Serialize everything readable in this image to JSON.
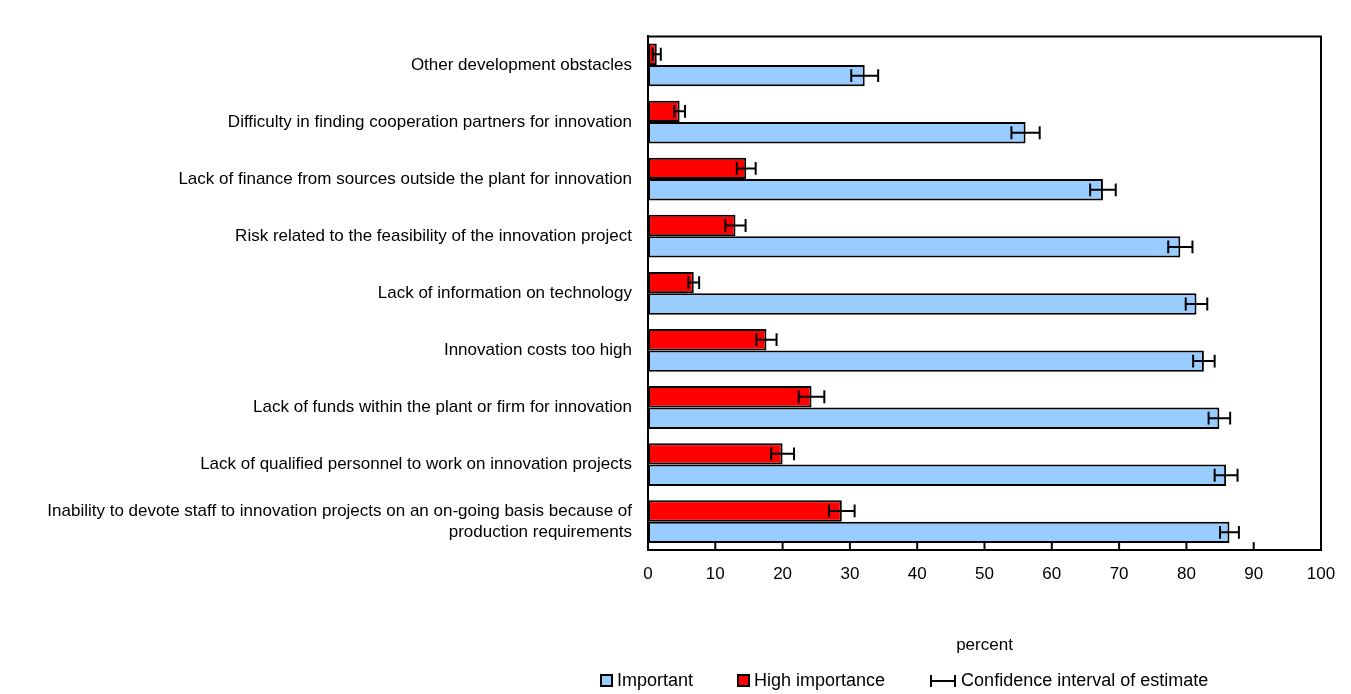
{
  "chart_data": {
    "type": "bar",
    "orientation": "horizontal",
    "categories": [
      "Other development obstacles",
      "Difficulty in finding cooperation partners for innovation",
      "Lack of finance from sources outside the plant for innovation",
      "Risk related to the feasibility of the innovation project",
      "Lack of information on technology",
      "Innovation costs too high",
      "Lack of funds within the plant or firm for innovation",
      "Lack of qualified personnel to work on innovation projects",
      "Inability to devote staff to innovation projects on an on-going basis because of production requirements"
    ],
    "series": [
      {
        "name": "Important",
        "color": "#99ccff",
        "values": [
          32.2,
          56.1,
          67.6,
          79.1,
          81.5,
          82.6,
          84.9,
          85.9,
          86.4
        ],
        "errors": [
          2.0,
          2.1,
          1.9,
          1.8,
          1.6,
          1.6,
          1.6,
          1.7,
          1.4
        ]
      },
      {
        "name": "High importance",
        "color": "#ff0000",
        "values": [
          1.3,
          4.7,
          14.6,
          13.0,
          6.8,
          17.6,
          24.3,
          20.0,
          28.8
        ],
        "errors": [
          0.6,
          0.8,
          1.4,
          1.5,
          0.8,
          1.5,
          1.9,
          1.7,
          1.9
        ]
      }
    ],
    "xlim": [
      0,
      100
    ],
    "xticks": [
      0,
      10,
      20,
      30,
      40,
      50,
      60,
      70,
      80,
      90,
      100
    ],
    "xlabel": "percent",
    "legend": "bottom",
    "grid": false,
    "annotations": [
      "Confidence interval of estimate"
    ]
  }
}
